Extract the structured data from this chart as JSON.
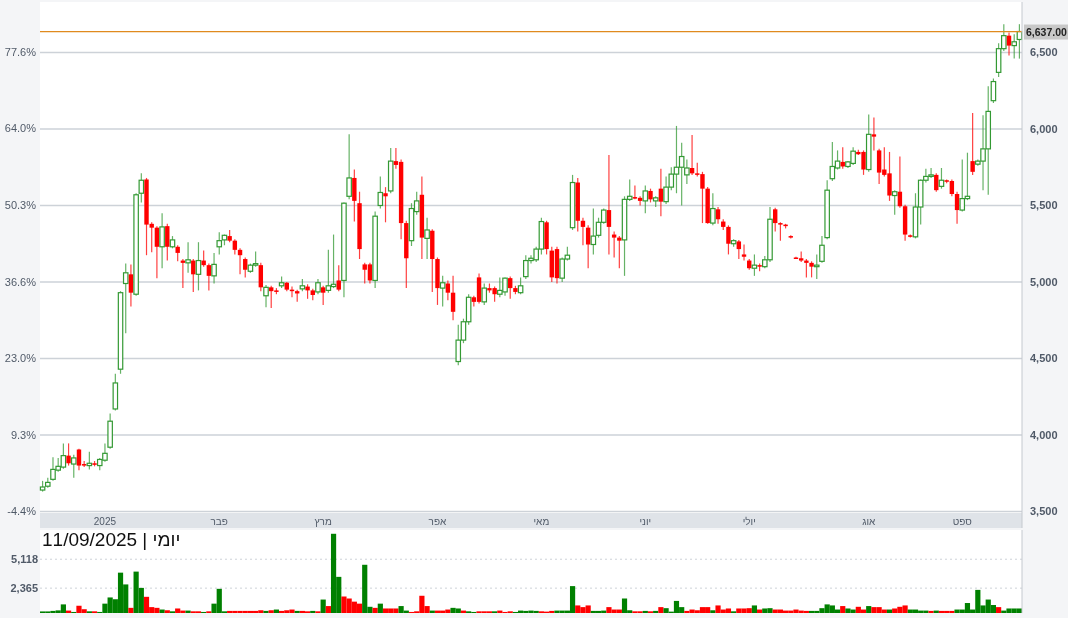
{
  "chart_data": [
    {
      "type": "candlestick",
      "categories": [
        null,
        null,
        null,
        null,
        null,
        null,
        null,
        null,
        null,
        null,
        null,
        null,
        "2025",
        null,
        null,
        null,
        null,
        null,
        null,
        null,
        null,
        null,
        null,
        null,
        null,
        null,
        null,
        null,
        null,
        null,
        null,
        null,
        null,
        null,
        "פבר",
        null,
        null,
        null,
        null,
        null,
        null,
        null,
        null,
        null,
        null,
        null,
        null,
        null,
        null,
        null,
        null,
        null,
        null,
        null,
        "מרץ",
        null,
        null,
        null,
        null,
        null,
        null,
        null,
        null,
        null,
        null,
        null,
        null,
        null,
        null,
        null,
        null,
        null,
        null,
        null,
        null,
        null,
        "אפר",
        null,
        null,
        null,
        null,
        null,
        null,
        null,
        null,
        null,
        null,
        null,
        null,
        null,
        null,
        null,
        null,
        null,
        null,
        null,
        "מאי",
        null,
        null,
        null,
        null,
        null,
        null,
        null,
        null,
        null,
        null,
        null,
        null,
        null,
        null,
        null,
        null,
        null,
        null,
        null,
        "יוני",
        null,
        null,
        null,
        null,
        null,
        null,
        null,
        null,
        null,
        null,
        null,
        null,
        null,
        null,
        null,
        null,
        null,
        null,
        null,
        "יולי",
        null,
        null,
        null,
        null,
        null,
        null,
        null,
        null,
        null,
        null,
        null,
        null,
        null,
        null,
        null,
        null,
        null,
        null,
        null,
        null,
        null,
        null,
        "אוג",
        null,
        null,
        null,
        null,
        null,
        null,
        null,
        null,
        null,
        null,
        null,
        null,
        null,
        null,
        null,
        null,
        null,
        "ספט",
        null,
        null,
        null,
        null,
        null,
        null,
        null,
        null,
        null,
        null,
        null
      ],
      "ohlc": [
        [
          3640,
          3700,
          3630,
          3660
        ],
        [
          3665,
          3720,
          3655,
          3690
        ],
        [
          3710,
          3855,
          3700,
          3775
        ],
        [
          3770,
          3850,
          3760,
          3795
        ],
        [
          3790,
          3945,
          3780,
          3865
        ],
        [
          3865,
          3945,
          3800,
          3815
        ],
        [
          3810,
          3870,
          3720,
          3850
        ],
        [
          3905,
          3910,
          3770,
          3800
        ],
        [
          3810,
          3830,
          3790,
          3800
        ],
        [
          3800,
          3890,
          3775,
          3815
        ],
        [
          3815,
          3830,
          3795,
          3805
        ],
        [
          3800,
          3850,
          3770,
          3840
        ],
        [
          3835,
          3945,
          3825,
          3880
        ],
        [
          3920,
          4140,
          3910,
          4090
        ],
        [
          4170,
          4400,
          4160,
          4340
        ],
        [
          4430,
          4940,
          4400,
          4930
        ],
        [
          4990,
          5120,
          4665,
          5060
        ],
        [
          5050,
          5115,
          4840,
          4930
        ],
        [
          4920,
          5580,
          4910,
          5570
        ],
        [
          5580,
          5710,
          5520,
          5665
        ],
        [
          5670,
          5680,
          5175,
          5375
        ],
        [
          5380,
          5390,
          5195,
          5355
        ],
        [
          5355,
          5365,
          5025,
          5230
        ],
        [
          5230,
          5450,
          5090,
          5360
        ],
        [
          5365,
          5380,
          5140,
          5230
        ],
        [
          5230,
          5300,
          5220,
          5275
        ],
        [
          5230,
          5240,
          5135,
          5190
        ],
        [
          5140,
          5150,
          4960,
          5125
        ],
        [
          5125,
          5260,
          5060,
          5145
        ],
        [
          5140,
          5150,
          4935,
          5050
        ],
        [
          5050,
          5260,
          4945,
          5140
        ],
        [
          5140,
          5205,
          5100,
          5110
        ],
        [
          5110,
          5120,
          4945,
          5040
        ],
        [
          5040,
          5190,
          4990,
          5115
        ],
        [
          5230,
          5325,
          5180,
          5270
        ],
        [
          5275,
          5310,
          5240,
          5305
        ],
        [
          5300,
          5340,
          5260,
          5270
        ],
        [
          5270,
          5280,
          5180,
          5210
        ],
        [
          5210,
          5220,
          5050,
          5175
        ],
        [
          5150,
          5160,
          5030,
          5080
        ],
        [
          5070,
          5120,
          5060,
          5110
        ],
        [
          5110,
          5200,
          5100,
          5120
        ],
        [
          5110,
          5125,
          4940,
          4965
        ],
        [
          4910,
          4980,
          4835,
          4965
        ],
        [
          4965,
          4975,
          4830,
          4940
        ],
        [
          4945,
          4960,
          4920,
          4935
        ],
        [
          4975,
          5035,
          4960,
          4995
        ],
        [
          4995,
          5000,
          4940,
          4950
        ],
        [
          4950,
          4970,
          4900,
          4940
        ],
        [
          4940,
          4950,
          4870,
          4925
        ],
        [
          4955,
          5020,
          4940,
          4975
        ],
        [
          4970,
          4985,
          4890,
          4945
        ],
        [
          4945,
          4955,
          4880,
          4915
        ],
        [
          4935,
          5020,
          4920,
          4995
        ],
        [
          4965,
          4975,
          4850,
          4930
        ],
        [
          4945,
          5210,
          4930,
          4975
        ],
        [
          4970,
          5310,
          4960,
          4985
        ],
        [
          5010,
          5110,
          4940,
          4950
        ],
        [
          5010,
          5520,
          4900,
          5515
        ],
        [
          5560,
          5965,
          5540,
          5680
        ],
        [
          5680,
          5735,
          5395,
          5530
        ],
        [
          5515,
          5590,
          5150,
          5215
        ],
        [
          5115,
          5125,
          4990,
          5080
        ],
        [
          5115,
          5125,
          4990,
          5010
        ],
        [
          5010,
          5460,
          4960,
          5430
        ],
        [
          5500,
          5690,
          5480,
          5585
        ],
        [
          5580,
          5620,
          5390,
          5560
        ],
        [
          5595,
          5875,
          5580,
          5790
        ],
        [
          5790,
          5875,
          5740,
          5765
        ],
        [
          5785,
          5800,
          5280,
          5385
        ],
        [
          5385,
          5400,
          4960,
          5155
        ],
        [
          5270,
          5515,
          5235,
          5480
        ],
        [
          5460,
          5590,
          5440,
          5530
        ],
        [
          5570,
          5690,
          5150,
          5290
        ],
        [
          5285,
          5420,
          5150,
          5340
        ],
        [
          5335,
          5345,
          4935,
          5150
        ],
        [
          5150,
          5160,
          4850,
          4960
        ],
        [
          4960,
          5040,
          4840,
          4995
        ],
        [
          4990,
          5010,
          4880,
          4930
        ],
        [
          4930,
          5040,
          4750,
          4805
        ],
        [
          4480,
          4720,
          4455,
          4620
        ],
        [
          4620,
          4760,
          4600,
          4740
        ],
        [
          4740,
          4920,
          4720,
          4900
        ],
        [
          4900,
          4910,
          4840,
          4870
        ],
        [
          5030,
          5055,
          4860,
          4870
        ],
        [
          4870,
          4990,
          4850,
          4960
        ],
        [
          4960,
          4990,
          4930,
          4945
        ],
        [
          4960,
          4970,
          4870,
          4920
        ],
        [
          4920,
          5030,
          4900,
          4945
        ],
        [
          4935,
          5030,
          4910,
          5025
        ],
        [
          5025,
          5035,
          4890,
          4960
        ],
        [
          4960,
          4975,
          4920,
          4935
        ],
        [
          4930,
          5030,
          4920,
          4975
        ],
        [
          5035,
          5175,
          5020,
          5140
        ],
        [
          5140,
          5175,
          5120,
          5155
        ],
        [
          5145,
          5230,
          5130,
          5215
        ],
        [
          5215,
          5420,
          5180,
          5395
        ],
        [
          5390,
          5400,
          5180,
          5215
        ],
        [
          5205,
          5230,
          5000,
          5030
        ],
        [
          5215,
          5230,
          4990,
          5025
        ],
        [
          5025,
          5160,
          5000,
          5150
        ],
        [
          5150,
          5230,
          5140,
          5175
        ],
        [
          5355,
          5700,
          5340,
          5650
        ],
        [
          5650,
          5680,
          5330,
          5400
        ],
        [
          5400,
          5420,
          5240,
          5360
        ],
        [
          5355,
          5370,
          5090,
          5245
        ],
        [
          5245,
          5480,
          5180,
          5300
        ],
        [
          5305,
          5420,
          5290,
          5390
        ],
        [
          5390,
          5480,
          5380,
          5470
        ],
        [
          5470,
          5830,
          5180,
          5360
        ],
        [
          5310,
          5330,
          5160,
          5290
        ],
        [
          5290,
          5300,
          5090,
          5270
        ],
        [
          5275,
          5560,
          5040,
          5540
        ],
        [
          5540,
          5670,
          5530,
          5560
        ],
        [
          5555,
          5630,
          5540,
          5545
        ],
        [
          5550,
          5560,
          5500,
          5530
        ],
        [
          5530,
          5630,
          5450,
          5595
        ],
        [
          5595,
          5610,
          5520,
          5540
        ],
        [
          5530,
          5560,
          5490,
          5550
        ],
        [
          5610,
          5740,
          5430,
          5525
        ],
        [
          5525,
          5690,
          5510,
          5620
        ],
        [
          5620,
          5750,
          5600,
          5705
        ],
        [
          5705,
          6020,
          5580,
          5750
        ],
        [
          5750,
          5910,
          5500,
          5820
        ],
        [
          5700,
          5800,
          5640,
          5745
        ],
        [
          5745,
          5960,
          5700,
          5710
        ],
        [
          5710,
          5780,
          5690,
          5705
        ],
        [
          5705,
          5720,
          5385,
          5610
        ],
        [
          5610,
          5620,
          5380,
          5385
        ],
        [
          5385,
          5580,
          5370,
          5480
        ],
        [
          5475,
          5490,
          5380,
          5410
        ],
        [
          5395,
          5410,
          5340,
          5360
        ],
        [
          5360,
          5370,
          5180,
          5250
        ],
        [
          5250,
          5280,
          5230,
          5270
        ],
        [
          5265,
          5275,
          5150,
          5215
        ],
        [
          5180,
          5245,
          5140,
          5165
        ],
        [
          5140,
          5150,
          5080,
          5090
        ],
        [
          5090,
          5180,
          5040,
          5110
        ],
        [
          5110,
          5120,
          5070,
          5100
        ],
        [
          5100,
          5170,
          5090,
          5145
        ],
        [
          5145,
          5490,
          5130,
          5410
        ],
        [
          5475,
          5485,
          5330,
          5385
        ],
        [
          5385,
          5390,
          5270,
          5375
        ],
        [
          5375,
          5380,
          5350,
          5365
        ],
        [
          5300,
          5305,
          5285,
          5295
        ],
        [
          5160,
          5165,
          5150,
          5155
        ],
        [
          5155,
          5200,
          5130,
          5140
        ],
        [
          5140,
          5150,
          5030,
          5125
        ],
        [
          5125,
          5135,
          5030,
          5100
        ],
        [
          5100,
          5180,
          5020,
          5110
        ],
        [
          5135,
          5300,
          5125,
          5240
        ],
        [
          5290,
          5665,
          5280,
          5600
        ],
        [
          5675,
          5915,
          5660,
          5755
        ],
        [
          5745,
          5860,
          5735,
          5790
        ],
        [
          5785,
          5880,
          5740,
          5755
        ],
        [
          5755,
          5790,
          5745,
          5785
        ],
        [
          5775,
          5880,
          5765,
          5855
        ],
        [
          5850,
          5865,
          5830,
          5835
        ],
        [
          5850,
          5860,
          5700,
          5735
        ],
        [
          5735,
          6095,
          5720,
          5965
        ],
        [
          5965,
          6075,
          5860,
          5950
        ],
        [
          5860,
          5870,
          5640,
          5715
        ],
        [
          5735,
          5880,
          5690,
          5700
        ],
        [
          5710,
          5850,
          5530,
          5565
        ],
        [
          5565,
          5600,
          5440,
          5590
        ],
        [
          5590,
          5820,
          5485,
          5495
        ],
        [
          5495,
          5505,
          5270,
          5310
        ],
        [
          5305,
          5310,
          5290,
          5300
        ],
        [
          5295,
          5580,
          5285,
          5490
        ],
        [
          5490,
          5670,
          5375,
          5665
        ],
        [
          5665,
          5740,
          5650,
          5690
        ],
        [
          5690,
          5745,
          5680,
          5700
        ],
        [
          5700,
          5710,
          5590,
          5600
        ],
        [
          5625,
          5745,
          5610,
          5665
        ],
        [
          5665,
          5670,
          5645,
          5655
        ],
        [
          5660,
          5670,
          5560,
          5575
        ],
        [
          5575,
          5590,
          5380,
          5470
        ],
        [
          5470,
          5800,
          5460,
          5545
        ],
        [
          5545,
          5845,
          5535,
          5560
        ],
        [
          5790,
          6105,
          5700,
          5720
        ],
        [
          5770,
          5800,
          5760,
          5790
        ],
        [
          5790,
          6090,
          5600,
          5870
        ],
        [
          5870,
          6280,
          5570,
          6115
        ],
        [
          6185,
          6330,
          6170,
          6310
        ],
        [
          6370,
          6560,
          6340,
          6525
        ],
        [
          6525,
          6685,
          6510,
          6610
        ],
        [
          6610,
          6630,
          6480,
          6545
        ],
        [
          6545,
          6620,
          6460,
          6570
        ],
        [
          6585,
          6685,
          6460,
          6637
        ]
      ],
      "colors": [
        "#339933",
        "#339933",
        "#339933",
        "#339933",
        "#339933",
        "#ff0000",
        "#339933",
        "#ff0000",
        "#ff0000",
        "#339933",
        "#ff0000",
        "#339933",
        "#339933",
        "#339933",
        "#339933",
        "#339933",
        "#339933",
        "#ff0000",
        "#339933",
        "#339933",
        "#ff0000",
        "#ff0000",
        "#ff0000",
        "#339933",
        "#ff0000",
        "#339933",
        "#ff0000",
        "#ff0000",
        "#339933",
        "#ff0000",
        "#339933",
        "#ff0000",
        "#ff0000",
        "#339933",
        "#339933",
        "#339933",
        "#ff0000",
        "#ff0000",
        "#ff0000",
        "#ff0000",
        "#339933",
        "#339933",
        "#ff0000",
        "#339933",
        "#ff0000",
        "#ff0000",
        "#339933",
        "#ff0000",
        "#ff0000",
        "#ff0000",
        "#339933",
        "#ff0000",
        "#ff0000",
        "#339933",
        "#ff0000",
        "#339933",
        "#339933",
        "#ff0000",
        "#339933",
        "#339933",
        "#ff0000",
        "#ff0000",
        "#ff0000",
        "#ff0000",
        "#339933",
        "#339933",
        "#ff0000",
        "#339933",
        "#ff0000",
        "#ff0000",
        "#ff0000",
        "#339933",
        "#339933",
        "#ff0000",
        "#339933",
        "#ff0000",
        "#ff0000",
        "#339933",
        "#ff0000",
        "#ff0000",
        "#339933",
        "#339933",
        "#339933",
        "#ff0000",
        "#ff0000",
        "#339933",
        "#ff0000",
        "#ff0000",
        "#339933",
        "#339933",
        "#ff0000",
        "#ff0000",
        "#339933",
        "#339933",
        "#339933",
        "#339933",
        "#339933",
        "#ff0000",
        "#ff0000",
        "#ff0000",
        "#339933",
        "#339933",
        "#339933",
        "#ff0000",
        "#ff0000",
        "#ff0000",
        "#339933",
        "#339933",
        "#339933",
        "#ff0000",
        "#ff0000",
        "#ff0000",
        "#339933",
        "#339933",
        "#ff0000",
        "#ff0000",
        "#339933",
        "#ff0000",
        "#339933",
        "#ff0000",
        "#339933",
        "#339933",
        "#339933",
        "#339933",
        "#339933",
        "#ff0000",
        "#ff0000",
        "#ff0000",
        "#ff0000",
        "#339933",
        "#ff0000",
        "#ff0000",
        "#ff0000",
        "#339933",
        "#ff0000",
        "#ff0000",
        "#ff0000",
        "#339933",
        "#ff0000",
        "#339933",
        "#339933",
        "#ff0000",
        "#ff0000",
        "#ff0000",
        "#ff0000",
        "#ff0000",
        "#ff0000",
        "#ff0000",
        "#ff0000",
        "#339933",
        "#339933",
        "#339933",
        "#339933",
        "#339933",
        "#ff0000",
        "#339933",
        "#339933",
        "#ff0000",
        "#ff0000",
        "#339933",
        "#ff0000",
        "#ff0000",
        "#ff0000",
        "#ff0000",
        "#339933",
        "#ff0000",
        "#ff0000",
        "#ff0000",
        "#339933",
        "#339933",
        "#339933",
        "#339933",
        "#ff0000",
        "#339933",
        "#ff0000",
        "#ff0000",
        "#ff0000",
        "#339933",
        "#339933",
        "#ff0000",
        "#339933",
        "#339933",
        "#339933",
        "#339933",
        "#339933",
        "#339933",
        "#ff0000",
        "#339933",
        "#339933"
      ],
      "ylim": [
        3490,
        6830
      ],
      "yticks": [
        {
          "value": 3500,
          "label": "3,500"
        },
        {
          "value": 4000,
          "label": "4,000"
        },
        {
          "value": 4500,
          "label": "4,500"
        },
        {
          "value": 5000,
          "label": "5,000"
        },
        {
          "value": 5500,
          "label": "5,500"
        },
        {
          "value": 6000,
          "label": "6,000"
        },
        {
          "value": 6500,
          "label": "6,500"
        }
      ],
      "y2lim": [
        -4.7,
        86.6
      ],
      "y2ticks": [
        {
          "value": -4.4,
          "label": "-4.4%"
        },
        {
          "value": 9.3,
          "label": "9.3%"
        },
        {
          "value": 23.0,
          "label": "23.0%"
        },
        {
          "value": 36.6,
          "label": "36.6%"
        },
        {
          "value": 50.3,
          "label": "50.3%"
        },
        {
          "value": 64.0,
          "label": "64.0%"
        },
        {
          "value": 77.6,
          "label": "77.6%"
        }
      ],
      "grid": "y",
      "ref_lines": [
        {
          "axis": "y",
          "value": 6637,
          "label": "6,637.00",
          "color": "#e08a1e"
        }
      ]
    },
    {
      "type": "bar",
      "categories": [
        null,
        null,
        null,
        null,
        null,
        null,
        null,
        null,
        null,
        null,
        null,
        null,
        null,
        null,
        null,
        null,
        null,
        null,
        null,
        null,
        null,
        null,
        null,
        null,
        null,
        null,
        null,
        null,
        null,
        null,
        null,
        null,
        null,
        null,
        null,
        null,
        null,
        null,
        null,
        null,
        null,
        null,
        null,
        null,
        null,
        null,
        null,
        null,
        null,
        null,
        null,
        null,
        null,
        null,
        null,
        null,
        null,
        null,
        null,
        null,
        null,
        null,
        null,
        null,
        null,
        null,
        null,
        null,
        null,
        null,
        null,
        null,
        null,
        null,
        null,
        null,
        null,
        null,
        null,
        null,
        null,
        null,
        null,
        null,
        null,
        null,
        null,
        null,
        null,
        null,
        null,
        null,
        null,
        null,
        null,
        null,
        null,
        null,
        null,
        null,
        null,
        null,
        null,
        null,
        null,
        null,
        null,
        null,
        null,
        null,
        null,
        null,
        null,
        null,
        null,
        null,
        null,
        null,
        null,
        null,
        null,
        null,
        null,
        null,
        null,
        null,
        null,
        null,
        null,
        null,
        null,
        null,
        null,
        null,
        null,
        null,
        null,
        null,
        null,
        null,
        null,
        null,
        null,
        null,
        null,
        null,
        null,
        null,
        null,
        null,
        null,
        null,
        null,
        null,
        null,
        null,
        null,
        null,
        null,
        null,
        null,
        null,
        null,
        null,
        null,
        null,
        null,
        null,
        null,
        null,
        null,
        null,
        null,
        null,
        null,
        null,
        null,
        null,
        null,
        null,
        null,
        null,
        null,
        null,
        null,
        null,
        null,
        null,
        null
      ],
      "values": [
        150,
        150,
        200,
        250,
        820,
        230,
        100,
        690,
        360,
        160,
        160,
        100,
        890,
        1480,
        1310,
        3840,
        2720,
        490,
        3940,
        2390,
        1540,
        560,
        490,
        330,
        260,
        160,
        430,
        230,
        230,
        160,
        160,
        100,
        160,
        890,
        2300,
        160,
        200,
        200,
        200,
        200,
        200,
        200,
        260,
        200,
        260,
        330,
        200,
        260,
        330,
        200,
        200,
        160,
        200,
        160,
        1280,
        660,
        7540,
        3440,
        1570,
        1380,
        1080,
        890,
        4590,
        590,
        490,
        890,
        430,
        430,
        430,
        660,
        230,
        100,
        160,
        1640,
        660,
        230,
        230,
        230,
        330,
        490,
        430,
        230,
        160,
        100,
        160,
        160,
        160,
        160,
        230,
        100,
        160,
        100,
        230,
        200,
        230,
        200,
        160,
        130,
        200,
        230,
        230,
        230,
        2560,
        720,
        560,
        720,
        200,
        200,
        230,
        560,
        330,
        330,
        1380,
        260,
        160,
        160,
        200,
        160,
        200,
        560,
        460,
        130,
        1150,
        560,
        200,
        330,
        260,
        560,
        560,
        260,
        720,
        330,
        430,
        160,
        430,
        430,
        460,
        720,
        330,
        430,
        460,
        330,
        330,
        230,
        230,
        330,
        230,
        200,
        200,
        200,
        460,
        820,
        720,
        330,
        660,
        430,
        330,
        590,
        330,
        660,
        560,
        560,
        330,
        330,
        430,
        590,
        720,
        330,
        330,
        230,
        230,
        200,
        230,
        200,
        200,
        200,
        330,
        330,
        950,
        330,
        2200,
        720,
        1280,
        760,
        560,
        230,
        430,
        430,
        430
      ],
      "colors": [
        "#008000",
        "#008000",
        "#008000",
        "#008000",
        "#008000",
        "#ff0000",
        "#008000",
        "#ff0000",
        "#ff0000",
        "#008000",
        "#ff0000",
        "#008000",
        "#008000",
        "#008000",
        "#008000",
        "#008000",
        "#008000",
        "#ff0000",
        "#008000",
        "#008000",
        "#ff0000",
        "#ff0000",
        "#ff0000",
        "#008000",
        "#ff0000",
        "#008000",
        "#ff0000",
        "#ff0000",
        "#008000",
        "#ff0000",
        "#ff0000",
        "#008000",
        "#ff0000",
        "#008000",
        "#008000",
        "#008000",
        "#ff0000",
        "#ff0000",
        "#ff0000",
        "#ff0000",
        "#ff0000",
        "#ff0000",
        "#ff0000",
        "#008000",
        "#ff0000",
        "#008000",
        "#ff0000",
        "#ff0000",
        "#ff0000",
        "#008000",
        "#ff0000",
        "#ff0000",
        "#008000",
        "#ff0000",
        "#008000",
        "#ff0000",
        "#008000",
        "#008000",
        "#ff0000",
        "#ff0000",
        "#ff0000",
        "#ff0000",
        "#008000",
        "#008000",
        "#ff0000",
        "#008000",
        "#ff0000",
        "#ff0000",
        "#ff0000",
        "#008000",
        "#008000",
        "#ff0000",
        "#ff0000",
        "#ff0000",
        "#ff0000",
        "#008000",
        "#ff0000",
        "#ff0000",
        "#ff0000",
        "#008000",
        "#008000",
        "#ff0000",
        "#008000",
        "#008000",
        "#ff0000",
        "#ff0000",
        "#ff0000",
        "#008000",
        "#ff0000",
        "#ff0000",
        "#ff0000",
        "#008000",
        "#008000",
        "#008000",
        "#008000",
        "#008000",
        "#ff0000",
        "#ff0000",
        "#ff0000",
        "#008000",
        "#008000",
        "#008000",
        "#008000",
        "#ff0000",
        "#ff0000",
        "#ff0000",
        "#008000",
        "#008000",
        "#008000",
        "#ff0000",
        "#ff0000",
        "#ff0000",
        "#008000",
        "#008000",
        "#ff0000",
        "#ff0000",
        "#008000",
        "#ff0000",
        "#008000",
        "#ff0000",
        "#008000",
        "#008000",
        "#008000",
        "#008000",
        "#ff0000",
        "#ff0000",
        "#ff0000",
        "#ff0000",
        "#ff0000",
        "#008000",
        "#ff0000",
        "#ff0000",
        "#ff0000",
        "#008000",
        "#ff0000",
        "#ff0000",
        "#ff0000",
        "#008000",
        "#ff0000",
        "#008000",
        "#008000",
        "#ff0000",
        "#ff0000",
        "#ff0000",
        "#ff0000",
        "#ff0000",
        "#ff0000",
        "#ff0000",
        "#008000",
        "#008000",
        "#008000",
        "#008000",
        "#008000",
        "#008000",
        "#ff0000",
        "#008000",
        "#008000",
        "#ff0000",
        "#ff0000",
        "#008000",
        "#ff0000",
        "#ff0000",
        "#ff0000",
        "#008000",
        "#ff0000",
        "#ff0000",
        "#ff0000",
        "#008000",
        "#008000",
        "#008000",
        "#008000",
        "#ff0000",
        "#008000",
        "#ff0000",
        "#ff0000",
        "#ff0000",
        "#008000",
        "#008000",
        "#008000",
        "#008000",
        "#008000",
        "#008000",
        "#008000",
        "#008000",
        "#ff0000",
        "#008000",
        "#008000",
        "#008000",
        "#008000"
      ],
      "ylim": [
        0,
        7900
      ],
      "yticks": [
        {
          "value": 2365,
          "label": "2,365"
        },
        {
          "value": 5118,
          "label": "5,118"
        }
      ],
      "grid": "y",
      "annotations": [
        "יומי | 11/09/2025"
      ]
    }
  ]
}
